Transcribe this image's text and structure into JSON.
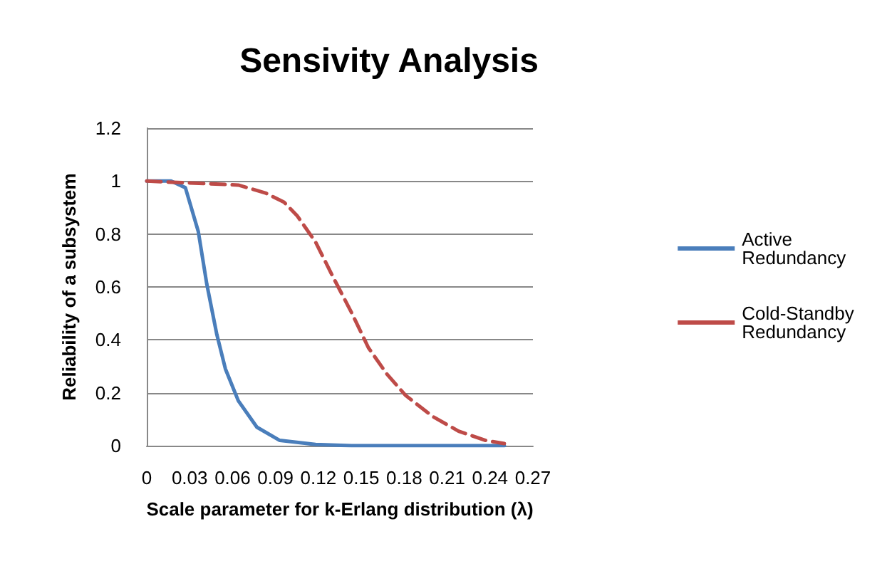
{
  "chart_data": {
    "type": "line",
    "title": "Sensivity Analysis",
    "xlabel": "Scale parameter for k-Erlang distribution (λ)",
    "ylabel": "Reliability of a subsystem",
    "series": [
      {
        "name": "Active Redundancy",
        "color": "#4a7ebb",
        "line_style": "solid",
        "x": [
          0,
          0.017,
          0.027,
          0.036,
          0.042,
          0.049,
          0.055,
          0.064,
          0.077,
          0.093,
          0.118,
          0.143,
          0.25
        ],
        "values": [
          1,
          1,
          0.975,
          0.81,
          0.61,
          0.42,
          0.29,
          0.17,
          0.07,
          0.02,
          0.005,
          0,
          0
        ]
      },
      {
        "name": "Cold-Standby Redundancy",
        "color": "#be4b48",
        "line_style": "dashed",
        "x": [
          0,
          0.064,
          0.083,
          0.096,
          0.105,
          0.118,
          0.13,
          0.143,
          0.155,
          0.168,
          0.181,
          0.2,
          0.218,
          0.237,
          0.25
        ],
        "values": [
          1,
          0.985,
          0.955,
          0.92,
          0.87,
          0.77,
          0.64,
          0.505,
          0.37,
          0.27,
          0.19,
          0.11,
          0.055,
          0.02,
          0.008
        ]
      }
    ],
    "xlim": [
      0,
      0.27
    ],
    "xticks": [
      0,
      0.03,
      0.06,
      0.09,
      0.12,
      0.15,
      0.18,
      0.21,
      0.24,
      0.27
    ],
    "ylim": [
      0,
      1.2
    ],
    "yticks": [
      0,
      0.2,
      0.4,
      0.6,
      0.8,
      1,
      1.2
    ],
    "grid": "y",
    "legend": "right",
    "marker": "none"
  }
}
